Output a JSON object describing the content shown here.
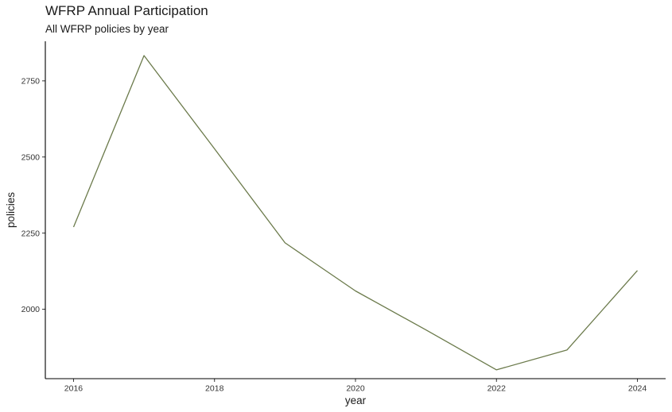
{
  "chart_data": {
    "type": "line",
    "title": "WFRP Annual Participation",
    "subtitle": "All WFRP policies by year",
    "xlabel": "year",
    "ylabel": "policies",
    "x": [
      2016,
      2017,
      2018,
      2019,
      2020,
      2021,
      2022,
      2023,
      2024
    ],
    "series": [
      {
        "values": [
          2270,
          2833,
          2527,
          2218,
          2060,
          1932,
          1801,
          1866,
          2127
        ]
      }
    ],
    "xlim": [
      2015.6,
      2024.4
    ],
    "ylim": [
      1772,
      2880
    ],
    "xticks": [
      2016,
      2018,
      2020,
      2022,
      2024
    ],
    "yticks": [
      2000,
      2250,
      2500,
      2750
    ],
    "line_color": "#6b7a4b",
    "grid": false,
    "legend": "none"
  }
}
